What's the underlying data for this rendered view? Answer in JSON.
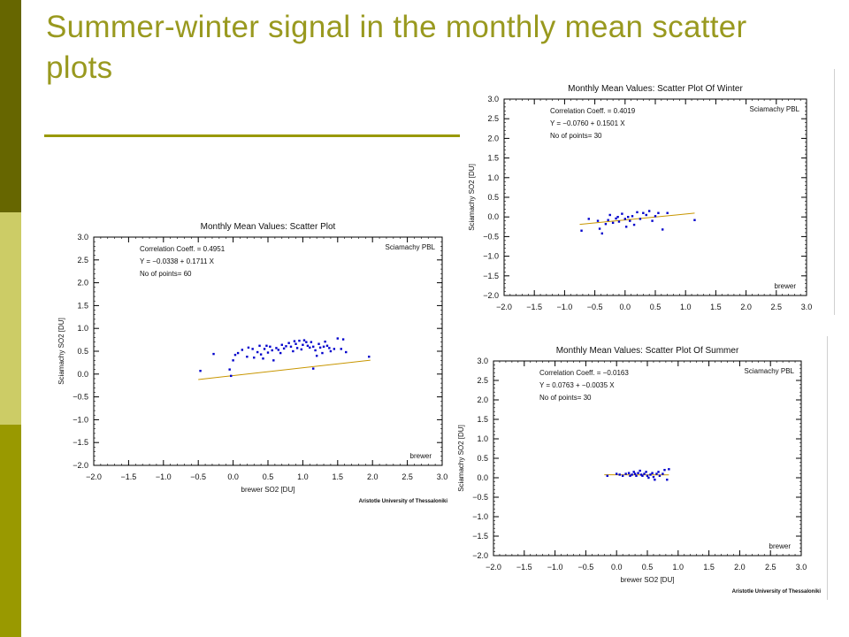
{
  "slide": {
    "title": "Summer-winter signal in the monthly mean scatter plots",
    "colors": {
      "title": "#99991f",
      "sidebar_dark": "#666600",
      "sidebar_light": "#cccc66",
      "sidebar_mid": "#999900",
      "rule": "#999900",
      "points": "#0000cc",
      "fit_line": "#c89600"
    }
  },
  "chart_data": [
    {
      "type": "scatter",
      "title": "Monthly Mean Values: Scatter Plot",
      "xlabel": "brewer SO2 [DU]",
      "ylabel": "Sciamachy SO2 [DU]",
      "xlim": [
        -2.0,
        3.0
      ],
      "ylim": [
        -2.0,
        3.0
      ],
      "xticks": [
        "-2.0",
        "-1.5",
        "-1.0",
        "-0.5",
        "0.0",
        "0.5",
        "1.0",
        "1.5",
        "2.0",
        "2.5",
        "3.0"
      ],
      "yticks": [
        "-2.0",
        "-1.5",
        "-1.0",
        "-0.5",
        "0.0",
        "0.5",
        "1.0",
        "1.5",
        "2.0",
        "2.5",
        "3.0"
      ],
      "annotations": [
        "Correlation Coeff.  = 0.4951",
        "Y =      −0.0338 +      0.1711  X",
        "No of points= 60"
      ],
      "legend": "Sciamachy PBL",
      "corner_label": "brewer",
      "credit": "Aristotle University of Thessaloniki",
      "fit": {
        "intercept": -0.0338,
        "slope": 0.1711,
        "x_range": [
          -0.5,
          1.97
        ]
      },
      "points": [
        [
          -0.47,
          0.07
        ],
        [
          -0.28,
          0.44
        ],
        [
          -0.05,
          0.1
        ],
        [
          -0.03,
          -0.04
        ],
        [
          0.0,
          0.3
        ],
        [
          0.03,
          0.42
        ],
        [
          0.07,
          0.46
        ],
        [
          0.13,
          0.53
        ],
        [
          0.2,
          0.38
        ],
        [
          0.22,
          0.58
        ],
        [
          0.28,
          0.55
        ],
        [
          0.3,
          0.36
        ],
        [
          0.35,
          0.48
        ],
        [
          0.38,
          0.62
        ],
        [
          0.4,
          0.43
        ],
        [
          0.43,
          0.34
        ],
        [
          0.45,
          0.55
        ],
        [
          0.48,
          0.62
        ],
        [
          0.5,
          0.47
        ],
        [
          0.53,
          0.6
        ],
        [
          0.56,
          0.52
        ],
        [
          0.58,
          0.3
        ],
        [
          0.62,
          0.57
        ],
        [
          0.65,
          0.53
        ],
        [
          0.68,
          0.46
        ],
        [
          0.7,
          0.64
        ],
        [
          0.73,
          0.56
        ],
        [
          0.76,
          0.61
        ],
        [
          0.8,
          0.68
        ],
        [
          0.83,
          0.6
        ],
        [
          0.86,
          0.5
        ],
        [
          0.88,
          0.72
        ],
        [
          0.9,
          0.66
        ],
        [
          0.92,
          0.57
        ],
        [
          0.95,
          0.73
        ],
        [
          0.98,
          0.54
        ],
        [
          1.0,
          0.64
        ],
        [
          1.02,
          0.74
        ],
        [
          1.05,
          0.7
        ],
        [
          1.07,
          0.62
        ],
        [
          1.1,
          0.58
        ],
        [
          1.12,
          0.7
        ],
        [
          1.15,
          0.6
        ],
        [
          1.18,
          0.52
        ],
        [
          1.2,
          0.4
        ],
        [
          1.23,
          0.66
        ],
        [
          1.25,
          0.58
        ],
        [
          1.28,
          0.46
        ],
        [
          1.3,
          0.6
        ],
        [
          1.32,
          0.71
        ],
        [
          1.35,
          0.62
        ],
        [
          1.38,
          0.57
        ],
        [
          1.4,
          0.5
        ],
        [
          1.45,
          0.55
        ],
        [
          1.5,
          0.78
        ],
        [
          1.55,
          0.55
        ],
        [
          1.58,
          0.76
        ],
        [
          1.62,
          0.48
        ],
        [
          1.15,
          0.12
        ],
        [
          1.95,
          0.38
        ]
      ]
    },
    {
      "type": "scatter",
      "title": "Monthly Mean Values: Scatter Plot Of Winter",
      "ylabel": "Sciamachy SO2 [DU]",
      "xlim": [
        -2.0,
        3.0
      ],
      "ylim": [
        -2.0,
        3.0
      ],
      "xticks": [
        "-2.0",
        "-1.5",
        "-1.0",
        "-0.5",
        "0.0",
        "0.5",
        "1.0",
        "1.5",
        "2.0",
        "2.5",
        "3.0"
      ],
      "yticks": [
        "-2.0",
        "-1.5",
        "-1.0",
        "-0.5",
        "0.0",
        "0.5",
        "1.0",
        "1.5",
        "2.0",
        "2.5",
        "3.0"
      ],
      "annotations": [
        "Correlation Coeff.  = 0.4019",
        "Y =      −0.0760 +      0.1501  X",
        "No of points= 30"
      ],
      "legend": "Sciamachy PBL",
      "corner_label": "brewer",
      "fit": {
        "intercept": -0.076,
        "slope": 0.1501,
        "x_range": [
          -0.75,
          1.15
        ]
      },
      "points": [
        [
          -0.72,
          -0.35
        ],
        [
          -0.6,
          -0.05
        ],
        [
          -0.45,
          -0.1
        ],
        [
          -0.42,
          -0.3
        ],
        [
          -0.38,
          -0.42
        ],
        [
          -0.32,
          -0.18
        ],
        [
          -0.28,
          -0.08
        ],
        [
          -0.25,
          0.05
        ],
        [
          -0.2,
          -0.15
        ],
        [
          -0.15,
          -0.04
        ],
        [
          -0.12,
          0.0
        ],
        [
          -0.1,
          -0.12
        ],
        [
          -0.05,
          0.08
        ],
        [
          0.0,
          -0.05
        ],
        [
          0.02,
          -0.25
        ],
        [
          0.05,
          0.0
        ],
        [
          0.08,
          -0.1
        ],
        [
          0.12,
          0.02
        ],
        [
          0.15,
          -0.2
        ],
        [
          0.2,
          0.12
        ],
        [
          0.25,
          -0.05
        ],
        [
          0.3,
          0.1
        ],
        [
          0.35,
          0.05
        ],
        [
          0.4,
          0.15
        ],
        [
          0.45,
          -0.1
        ],
        [
          0.5,
          0.02
        ],
        [
          0.55,
          0.1
        ],
        [
          0.62,
          -0.32
        ],
        [
          0.7,
          0.1
        ],
        [
          1.15,
          -0.08
        ]
      ]
    },
    {
      "type": "scatter",
      "title": "Monthly Mean Values: Scatter Plot Of Summer",
      "xlabel": "brewer SO2 [DU]",
      "ylabel": "Sciamachy SO2 [DU]",
      "xlim": [
        -2.0,
        3.0
      ],
      "ylim": [
        -2.0,
        3.0
      ],
      "xticks": [
        "-2.0",
        "-1.5",
        "-1.0",
        "-0.5",
        "0.0",
        "0.5",
        "1.0",
        "1.5",
        "2.0",
        "2.5",
        "3.0"
      ],
      "yticks": [
        "-2.0",
        "-1.5",
        "-1.0",
        "-0.5",
        "0.0",
        "0.5",
        "1.0",
        "1.5",
        "2.0",
        "2.5",
        "3.0"
      ],
      "annotations": [
        "Correlation Coeff.  = −0.0163",
        "Y =      0.0763 +      −0.0035  X",
        "No of points= 30"
      ],
      "legend": "Sciamachy PBL",
      "corner_label": "brewer",
      "credit": "Aristotle University of Thessaloniki",
      "fit": {
        "intercept": 0.0763,
        "slope": -0.0035,
        "x_range": [
          -0.2,
          0.85
        ]
      },
      "points": [
        [
          -0.15,
          0.05
        ],
        [
          0.0,
          0.1
        ],
        [
          0.05,
          0.08
        ],
        [
          0.1,
          0.05
        ],
        [
          0.15,
          0.1
        ],
        [
          0.2,
          0.12
        ],
        [
          0.22,
          0.05
        ],
        [
          0.25,
          0.08
        ],
        [
          0.28,
          0.15
        ],
        [
          0.3,
          0.1
        ],
        [
          0.32,
          0.05
        ],
        [
          0.35,
          0.12
        ],
        [
          0.38,
          0.18
        ],
        [
          0.4,
          0.08
        ],
        [
          0.42,
          0.05
        ],
        [
          0.45,
          0.1
        ],
        [
          0.48,
          0.15
        ],
        [
          0.5,
          0.05
        ],
        [
          0.52,
          0.0
        ],
        [
          0.55,
          0.08
        ],
        [
          0.58,
          0.12
        ],
        [
          0.6,
          0.02
        ],
        [
          0.62,
          -0.05
        ],
        [
          0.65,
          0.1
        ],
        [
          0.68,
          0.15
        ],
        [
          0.7,
          0.05
        ],
        [
          0.75,
          0.1
        ],
        [
          0.78,
          0.2
        ],
        [
          0.82,
          -0.05
        ],
        [
          0.85,
          0.22
        ]
      ]
    }
  ]
}
